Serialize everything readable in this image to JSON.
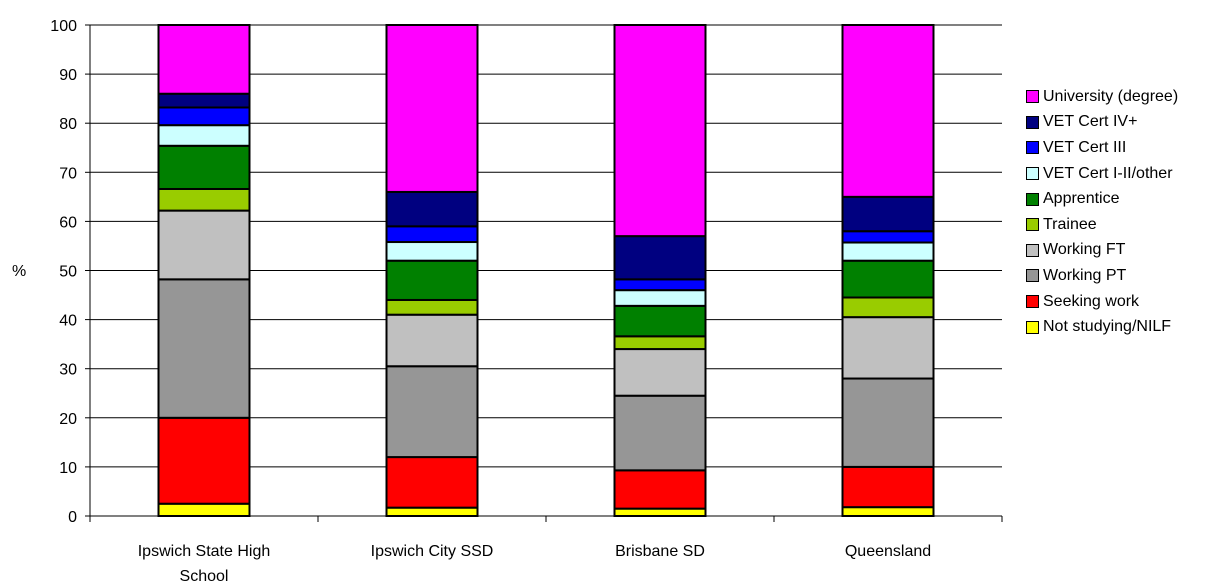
{
  "chart_data": {
    "type": "bar",
    "stacked": true,
    "ylabel": "%",
    "ylim": [
      0,
      100
    ],
    "yticks": [
      "0",
      "10",
      "20",
      "30",
      "40",
      "50",
      "60",
      "70",
      "80",
      "90",
      "100"
    ],
    "categories": [
      "Ipswich State High School",
      "Ipswich City SSD",
      "Brisbane SD",
      "Queensland"
    ],
    "category_lines": [
      [
        "Ipswich State High",
        "School"
      ],
      [
        "Ipswich City SSD"
      ],
      [
        "Brisbane SD"
      ],
      [
        "Queensland"
      ]
    ],
    "legend_position": "right",
    "series": [
      {
        "name": "Not studying/NILF",
        "color": "#FFFF00",
        "values": [
          2.5,
          1.7,
          1.5,
          1.8
        ]
      },
      {
        "name": "Seeking work",
        "color": "#FF0000",
        "values": [
          17.5,
          10.3,
          7.8,
          8.2
        ]
      },
      {
        "name": "Working PT",
        "color": "#969696",
        "values": [
          28.2,
          18.5,
          15.2,
          18.0
        ]
      },
      {
        "name": "Working FT",
        "color": "#C0C0C0",
        "values": [
          14.0,
          10.5,
          9.5,
          12.5
        ]
      },
      {
        "name": "Trainee",
        "color": "#99CC00",
        "values": [
          4.4,
          3.0,
          2.6,
          4.0
        ]
      },
      {
        "name": "Apprentice",
        "color": "#008000",
        "values": [
          8.8,
          8.0,
          6.2,
          7.5
        ]
      },
      {
        "name": "VET Cert I-II/other",
        "color": "#CCFFFF",
        "values": [
          4.2,
          3.8,
          3.2,
          3.7
        ]
      },
      {
        "name": "VET Cert III",
        "color": "#0000FF",
        "values": [
          3.6,
          3.2,
          2.2,
          2.3
        ]
      },
      {
        "name": "VET Cert IV+",
        "color": "#000080",
        "values": [
          2.8,
          7.0,
          8.8,
          7.0
        ]
      },
      {
        "name": "University (degree)",
        "color": "#FF00FF",
        "values": [
          14.0,
          34.0,
          43.0,
          35.0
        ]
      }
    ]
  }
}
